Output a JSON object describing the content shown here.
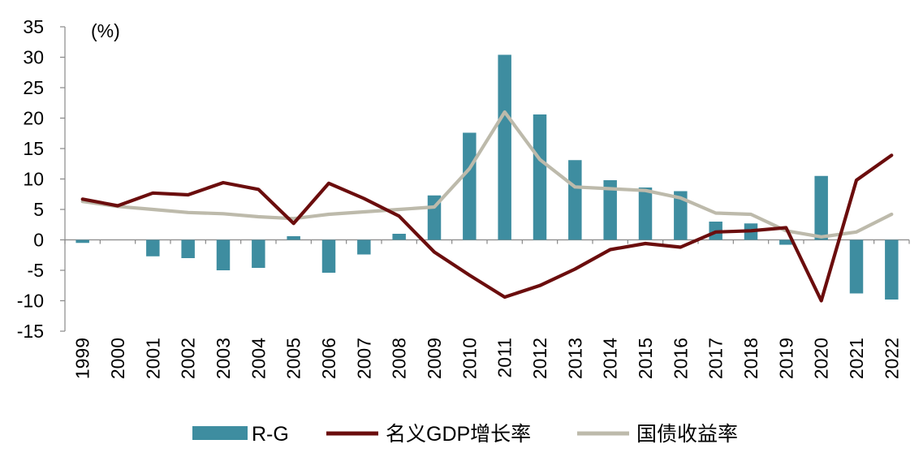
{
  "chart_data": {
    "type": "bar",
    "unit_label": "(%)",
    "ylim": [
      -15,
      35
    ],
    "yticks": [
      "35",
      "30",
      "25",
      "20",
      "15",
      "10",
      "5",
      "0",
      "-5",
      "-10",
      "-15"
    ],
    "categories": [
      "1999",
      "2000",
      "2001",
      "2002",
      "2003",
      "2004",
      "2005",
      "2006",
      "2007",
      "2008",
      "2009",
      "2010",
      "2011",
      "2012",
      "2013",
      "2014",
      "2015",
      "2016",
      "2017",
      "2018",
      "2019",
      "2020",
      "2021",
      "2022"
    ],
    "series": [
      {
        "name": "R-G",
        "kind": "bar",
        "color": "#3E8DA0",
        "values": [
          -0.5,
          0,
          -2.7,
          -3,
          -5,
          -4.6,
          0.6,
          -5.4,
          -2.4,
          1,
          7.3,
          17.6,
          30.4,
          20.6,
          13.1,
          9.8,
          8.6,
          8,
          3,
          2.7,
          -0.8,
          10.5,
          -8.8,
          -9.8
        ]
      },
      {
        "name": "名义GDP增长率",
        "kind": "line",
        "color": "#6B0D0D",
        "values": [
          6.7,
          5.6,
          7.7,
          7.4,
          9.4,
          8.3,
          2.7,
          9.3,
          6.8,
          3.9,
          -2,
          -5.8,
          -9.4,
          -7.5,
          -4.8,
          -1.6,
          -0.6,
          -1.2,
          1.3,
          1.5,
          2,
          -10,
          9.8,
          13.9
        ]
      },
      {
        "name": "国债收益率",
        "kind": "line",
        "color": "#BDBAAB",
        "values": [
          6.3,
          5.5,
          5,
          4.5,
          4.3,
          3.8,
          3.5,
          4.2,
          4.6,
          5,
          5.4,
          11.7,
          21,
          13.2,
          8.7,
          8.4,
          8.1,
          6.9,
          4.4,
          4.2,
          1.5,
          0.5,
          1.3,
          4.2
        ]
      }
    ],
    "legend": [
      "R-G",
      "名义GDP增长率",
      "国债收益率"
    ],
    "legend_position": "bottom-center",
    "title": "",
    "xlabel": "",
    "ylabel": ""
  }
}
